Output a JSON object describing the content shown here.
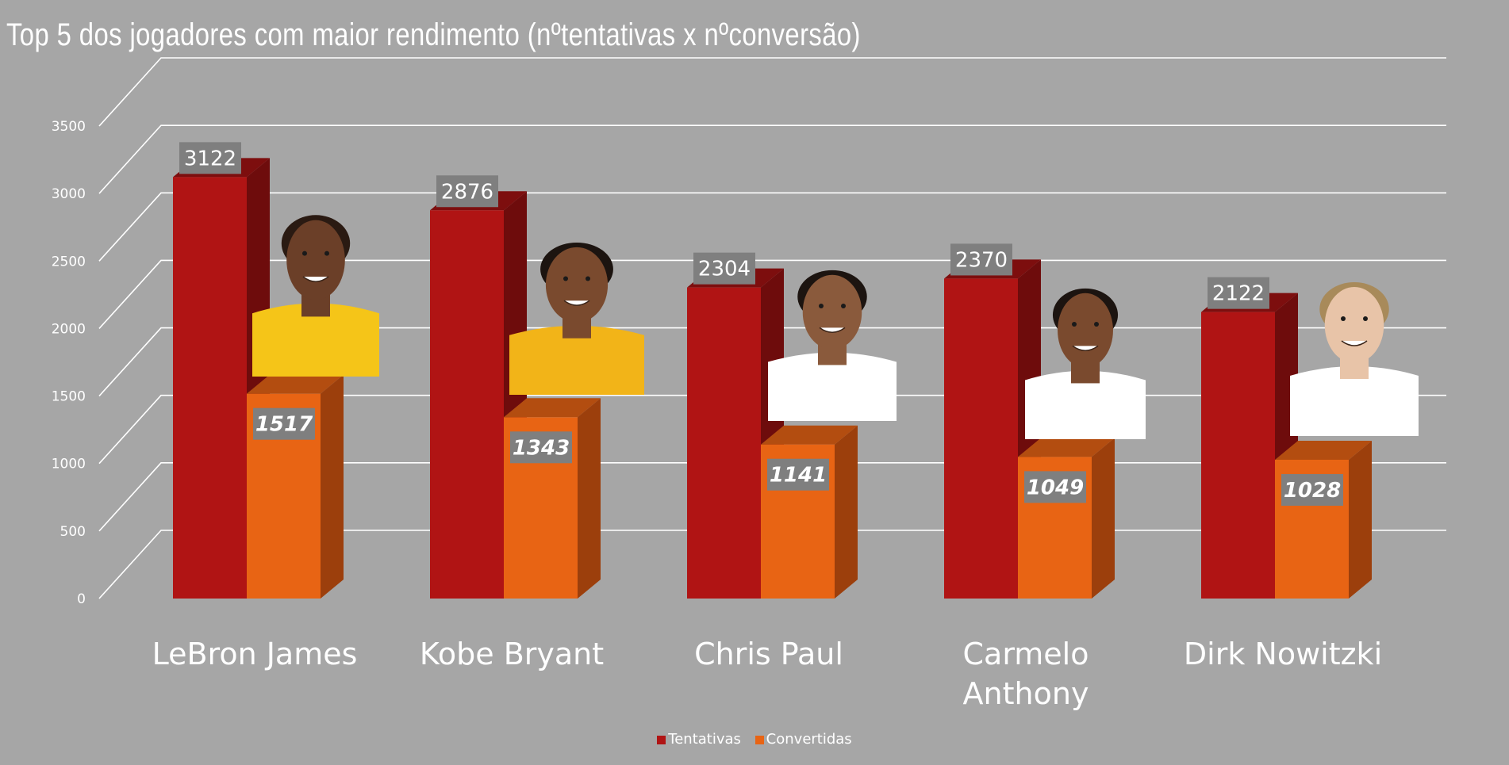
{
  "chart_data": {
    "type": "bar",
    "title": "Top 5 dos jogadores com maior rendimento (nºtentativas x nºconversão)",
    "xlabel": "",
    "ylabel": "",
    "ylim": [
      0,
      3500
    ],
    "yticks": [
      "0",
      "500",
      "1000",
      "1500",
      "2000",
      "2500",
      "3000",
      "3500"
    ],
    "ytick_values": [
      0,
      500,
      1000,
      1500,
      2000,
      2500,
      3000,
      3500
    ],
    "categories": [
      "LeBron James",
      "Kobe Bryant",
      "Chris Paul",
      "Carmelo Anthony",
      "Dirk Nowitzki"
    ],
    "series": [
      {
        "name": "Tentativas",
        "values": [
          3122,
          2876,
          2304,
          2370,
          2122
        ],
        "color": "#b01414"
      },
      {
        "name": "Convertidas",
        "values": [
          1517,
          1343,
          1141,
          1049,
          1028
        ],
        "color": "#e86414"
      }
    ],
    "grid": true,
    "legend_position": "bottom",
    "three_d": true
  },
  "icons": [
    "lebron-james-photo",
    "kobe-bryant-photo",
    "chris-paul-photo",
    "carmelo-anthony-photo",
    "dirk-nowitzki-photo"
  ]
}
